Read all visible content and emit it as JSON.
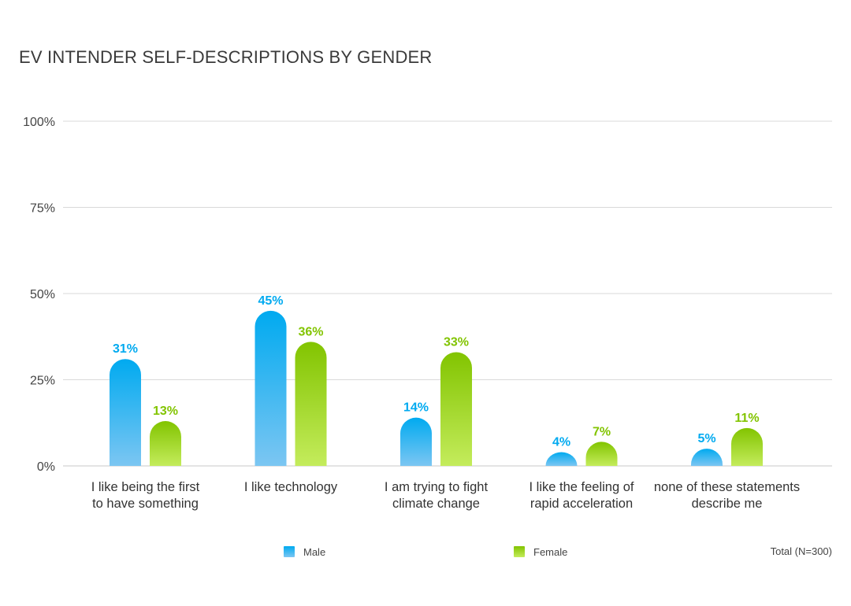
{
  "chart_data": {
    "type": "bar",
    "title": "EV INTENDER SELF-DESCRIPTIONS BY GENDER",
    "categories": [
      [
        "I like being the first",
        "to have something"
      ],
      [
        "I like technology"
      ],
      [
        "I am trying to fight",
        "climate change"
      ],
      [
        "I like the feeling of",
        "rapid acceleration"
      ],
      [
        "none of these statements",
        "describe me"
      ]
    ],
    "series": [
      {
        "name": "Male",
        "values": [
          31,
          45,
          14,
          4,
          5
        ],
        "labels": [
          "31%",
          "45%",
          "14%",
          "4%",
          "5%"
        ],
        "color": "#00aaf0",
        "color_light": "#7cc6f2"
      },
      {
        "name": "Female",
        "values": [
          13,
          36,
          33,
          7,
          11
        ],
        "labels": [
          "13%",
          "36%",
          "33%",
          "7%",
          "11%"
        ],
        "color": "#82c400",
        "color_light": "#c4ec5c"
      }
    ],
    "ylim": [
      0,
      100
    ],
    "yticks": [
      0,
      25,
      50,
      75,
      100
    ],
    "ytick_labels": [
      "0%",
      "25%",
      "50%",
      "75%",
      "100%"
    ],
    "grid": true,
    "legend": "bottom"
  },
  "footnote": "Total (N=300)"
}
